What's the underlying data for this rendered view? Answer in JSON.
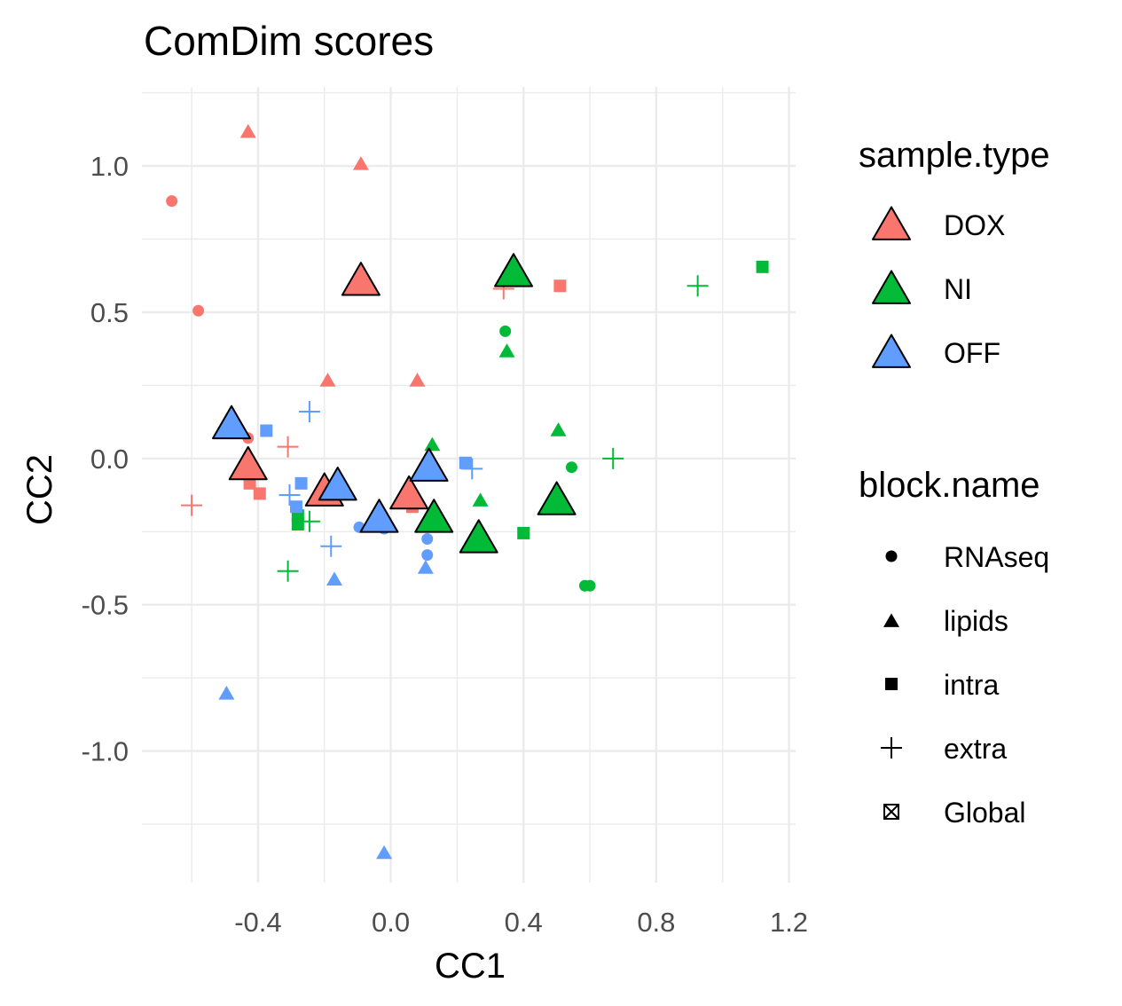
{
  "chart_data": {
    "type": "scatter",
    "title": "ComDim scores",
    "xlabel": "CC1",
    "ylabel": "CC2",
    "xlim": [
      -0.75,
      1.22
    ],
    "ylim": [
      -1.45,
      1.27
    ],
    "x_ticks": [
      -0.4,
      0.0,
      0.4,
      0.8,
      1.2
    ],
    "x_tick_labels": [
      "-0.4",
      "0.0",
      "0.4",
      "0.8",
      "1.2"
    ],
    "y_ticks": [
      1.0,
      0.5,
      0.0,
      -0.5,
      -1.0
    ],
    "y_tick_labels": [
      "1.0",
      "0.5",
      "0.0",
      "-0.5",
      "-1.0"
    ],
    "grid": true,
    "legend_position": "right",
    "colors": {
      "DOX": "#F8766D",
      "NI": "#00BA38",
      "OFF": "#619CFF"
    },
    "legends": {
      "sample_type": {
        "title": "sample.type",
        "items": [
          {
            "label": "DOX",
            "key": "DOX"
          },
          {
            "label": "NI",
            "key": "NI"
          },
          {
            "label": "OFF",
            "key": "OFF"
          }
        ]
      },
      "block_name": {
        "title": "block.name",
        "items": [
          {
            "label": "RNAseq",
            "shape": "circle"
          },
          {
            "label": "lipids",
            "shape": "triangle"
          },
          {
            "label": "intra",
            "shape": "square"
          },
          {
            "label": "extra",
            "shape": "plus"
          },
          {
            "label": "Global",
            "shape": "boxcross"
          }
        ]
      }
    },
    "points": [
      {
        "x": -0.66,
        "y": 0.88,
        "sample": "DOX",
        "block": "RNAseq"
      },
      {
        "x": -0.58,
        "y": 0.505,
        "sample": "DOX",
        "block": "RNAseq"
      },
      {
        "x": -0.43,
        "y": 0.07,
        "sample": "DOX",
        "block": "RNAseq"
      },
      {
        "x": -0.43,
        "y": 1.12,
        "sample": "DOX",
        "block": "lipids"
      },
      {
        "x": -0.09,
        "y": 1.01,
        "sample": "DOX",
        "block": "lipids"
      },
      {
        "x": -0.19,
        "y": 0.27,
        "sample": "DOX",
        "block": "lipids"
      },
      {
        "x": 0.08,
        "y": 0.27,
        "sample": "DOX",
        "block": "lipids"
      },
      {
        "x": -0.425,
        "y": -0.085,
        "sample": "DOX",
        "block": "intra"
      },
      {
        "x": -0.395,
        "y": -0.12,
        "sample": "DOX",
        "block": "intra"
      },
      {
        "x": 0.065,
        "y": -0.165,
        "sample": "DOX",
        "block": "intra"
      },
      {
        "x": 0.51,
        "y": 0.59,
        "sample": "DOX",
        "block": "intra"
      },
      {
        "x": -0.6,
        "y": -0.16,
        "sample": "DOX",
        "block": "extra"
      },
      {
        "x": -0.31,
        "y": 0.04,
        "sample": "DOX",
        "block": "extra"
      },
      {
        "x": 0.34,
        "y": 0.58,
        "sample": "DOX",
        "block": "extra"
      },
      {
        "x": 0.345,
        "y": 0.435,
        "sample": "NI",
        "block": "RNAseq"
      },
      {
        "x": 0.545,
        "y": -0.03,
        "sample": "NI",
        "block": "RNAseq"
      },
      {
        "x": 0.585,
        "y": -0.435,
        "sample": "NI",
        "block": "RNAseq"
      },
      {
        "x": 0.6,
        "y": -0.435,
        "sample": "NI",
        "block": "RNAseq"
      },
      {
        "x": 0.35,
        "y": 0.37,
        "sample": "NI",
        "block": "lipids"
      },
      {
        "x": 0.125,
        "y": 0.05,
        "sample": "NI",
        "block": "lipids"
      },
      {
        "x": 0.505,
        "y": 0.1,
        "sample": "NI",
        "block": "lipids"
      },
      {
        "x": 0.27,
        "y": -0.14,
        "sample": "NI",
        "block": "lipids"
      },
      {
        "x": -0.28,
        "y": -0.195,
        "sample": "NI",
        "block": "intra"
      },
      {
        "x": -0.28,
        "y": -0.225,
        "sample": "NI",
        "block": "intra"
      },
      {
        "x": 0.4,
        "y": -0.255,
        "sample": "NI",
        "block": "intra"
      },
      {
        "x": 1.12,
        "y": 0.655,
        "sample": "NI",
        "block": "intra"
      },
      {
        "x": -0.31,
        "y": -0.385,
        "sample": "NI",
        "block": "extra"
      },
      {
        "x": -0.245,
        "y": -0.215,
        "sample": "NI",
        "block": "extra"
      },
      {
        "x": 0.67,
        "y": 0.0,
        "sample": "NI",
        "block": "extra"
      },
      {
        "x": 0.925,
        "y": 0.59,
        "sample": "NI",
        "block": "extra"
      },
      {
        "x": -0.095,
        "y": -0.235,
        "sample": "OFF",
        "block": "RNAseq"
      },
      {
        "x": -0.02,
        "y": -0.24,
        "sample": "OFF",
        "block": "RNAseq"
      },
      {
        "x": 0.11,
        "y": -0.275,
        "sample": "OFF",
        "block": "RNAseq"
      },
      {
        "x": 0.11,
        "y": -0.33,
        "sample": "OFF",
        "block": "RNAseq"
      },
      {
        "x": 0.105,
        "y": -0.37,
        "sample": "OFF",
        "block": "lipids"
      },
      {
        "x": -0.17,
        "y": -0.41,
        "sample": "OFF",
        "block": "lipids"
      },
      {
        "x": -0.495,
        "y": -0.8,
        "sample": "OFF",
        "block": "lipids"
      },
      {
        "x": -0.02,
        "y": -1.345,
        "sample": "OFF",
        "block": "lipids"
      },
      {
        "x": -0.375,
        "y": 0.095,
        "sample": "OFF",
        "block": "intra"
      },
      {
        "x": -0.27,
        "y": -0.085,
        "sample": "OFF",
        "block": "intra"
      },
      {
        "x": -0.285,
        "y": -0.165,
        "sample": "OFF",
        "block": "intra"
      },
      {
        "x": 0.225,
        "y": -0.015,
        "sample": "OFF",
        "block": "intra"
      },
      {
        "x": -0.245,
        "y": 0.16,
        "sample": "OFF",
        "block": "extra"
      },
      {
        "x": -0.305,
        "y": -0.125,
        "sample": "OFF",
        "block": "extra"
      },
      {
        "x": -0.18,
        "y": -0.3,
        "sample": "OFF",
        "block": "extra"
      },
      {
        "x": 0.245,
        "y": -0.035,
        "sample": "OFF",
        "block": "extra"
      }
    ],
    "global_points": [
      {
        "x": -0.09,
        "y": 0.61,
        "sample": "DOX"
      },
      {
        "x": -0.43,
        "y": -0.02,
        "sample": "DOX"
      },
      {
        "x": -0.2,
        "y": -0.11,
        "sample": "DOX"
      },
      {
        "x": 0.055,
        "y": -0.12,
        "sample": "DOX"
      },
      {
        "x": 0.37,
        "y": 0.64,
        "sample": "NI"
      },
      {
        "x": 0.13,
        "y": -0.2,
        "sample": "NI"
      },
      {
        "x": 0.265,
        "y": -0.27,
        "sample": "NI"
      },
      {
        "x": 0.5,
        "y": -0.14,
        "sample": "NI"
      },
      {
        "x": -0.48,
        "y": 0.12,
        "sample": "OFF"
      },
      {
        "x": -0.16,
        "y": -0.09,
        "sample": "OFF"
      },
      {
        "x": 0.115,
        "y": -0.025,
        "sample": "OFF"
      },
      {
        "x": -0.035,
        "y": -0.2,
        "sample": "OFF"
      }
    ]
  }
}
